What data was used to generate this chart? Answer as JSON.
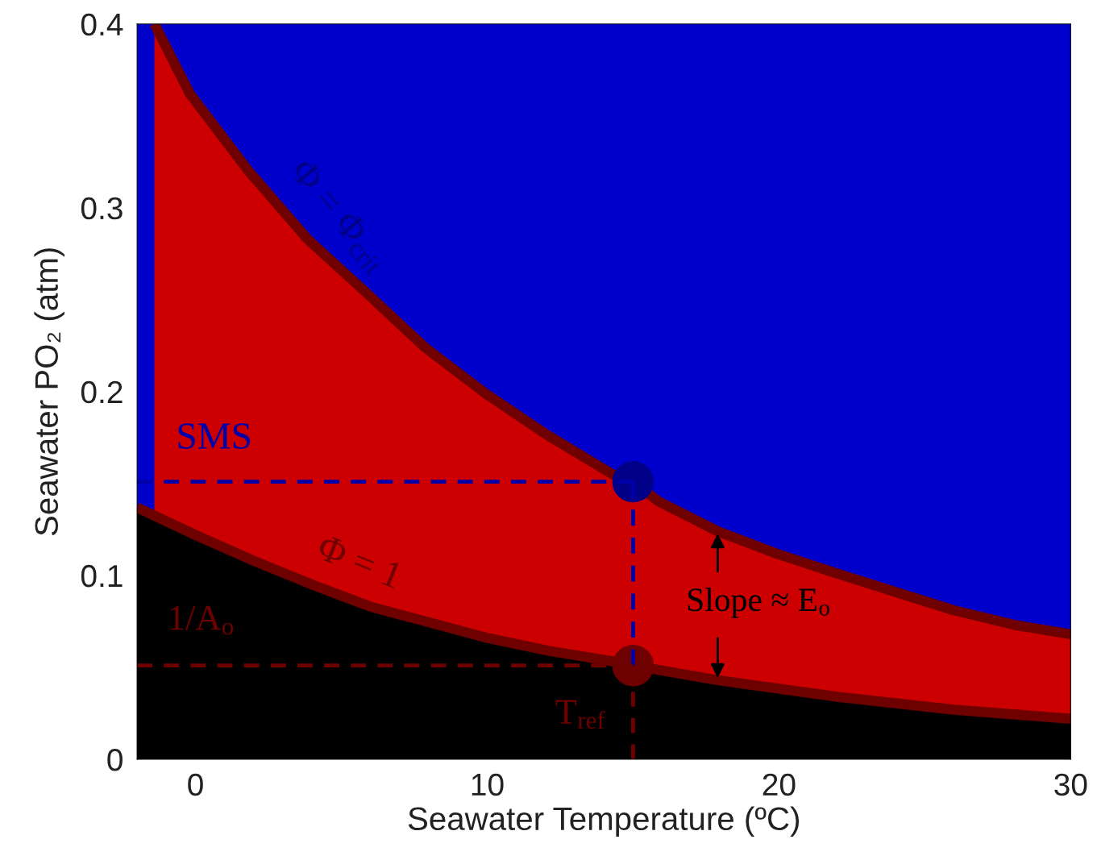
{
  "chart_data": {
    "type": "area",
    "xlabel": "Seawater Temperature (ºC)",
    "ylabel": "Seawater PO₂ (atm)",
    "xlim": [
      -2,
      30
    ],
    "ylim": [
      0,
      0.4
    ],
    "xticks": [
      0,
      10,
      20,
      30
    ],
    "yticks": [
      0,
      0.1,
      0.2,
      0.3,
      0.4
    ],
    "grid": false,
    "legend": false,
    "bands": [
      {
        "axis": "y",
        "from": 0,
        "to": 0.4,
        "color": "#0000cc"
      }
    ],
    "series": [
      {
        "color": "#cc0000",
        "x": [
          -1.41,
          -0.19,
          1.82,
          3.84,
          5.91,
          7.87,
          9.94,
          12.0,
          14.3,
          15,
          15.9,
          17.9,
          19.9,
          22.0,
          24.0,
          26.0,
          28.1,
          30
        ],
        "values": [
          0.4,
          0.362,
          0.32,
          0.283,
          0.253,
          0.224,
          0.199,
          0.177,
          0.155,
          0.151,
          0.14,
          0.124,
          0.112,
          0.101,
          0.091,
          0.081,
          0.073,
          0.068
        ]
      },
      {
        "color": "#000000",
        "x": [
          -2,
          0,
          2.0,
          4.0,
          6.0,
          8.0,
          10.0,
          12.1,
          14.4,
          15,
          17.9,
          22,
          26,
          30
        ],
        "values": [
          0.137,
          0.122,
          0.108,
          0.095,
          0.083,
          0.0745,
          0.066,
          0.059,
          0.053,
          0.051,
          0.043,
          0.034,
          0.027,
          0.022
        ]
      },
      {
        "type": "line",
        "color": "#0000aa",
        "line_style": "dashed",
        "x": [
          -2,
          15
        ],
        "values": [
          0.151,
          0.151
        ]
      },
      {
        "type": "line",
        "color": "#0000aa",
        "line_style": "dashed",
        "x": [
          15,
          15
        ],
        "values": [
          0.151,
          0.051
        ]
      },
      {
        "type": "line",
        "color": "#6e0000",
        "line_style": "dashed",
        "x": [
          -2,
          15
        ],
        "values": [
          0.051,
          0.051
        ]
      },
      {
        "type": "line",
        "color": "#6e0000",
        "line_style": "dashed",
        "x": [
          15,
          15
        ],
        "values": [
          0.051,
          0
        ]
      },
      {
        "type": "scatter",
        "color": "#000088",
        "marker": "circle",
        "x": [
          15
        ],
        "values": [
          0.151
        ]
      },
      {
        "type": "scatter",
        "color": "#6e0000",
        "marker": "circle",
        "x": [
          15
        ],
        "values": [
          0.051
        ]
      }
    ],
    "annotations": [
      "Φ = Φ$_{crit}$",
      "SMS",
      "Φ = 1",
      "1/A$_{o}$",
      "T$_{ref}$",
      {
        "text": "Slope ≈ E$_{o}$",
        "x": 17.9,
        "y": 0.124
      }
    ]
  }
}
